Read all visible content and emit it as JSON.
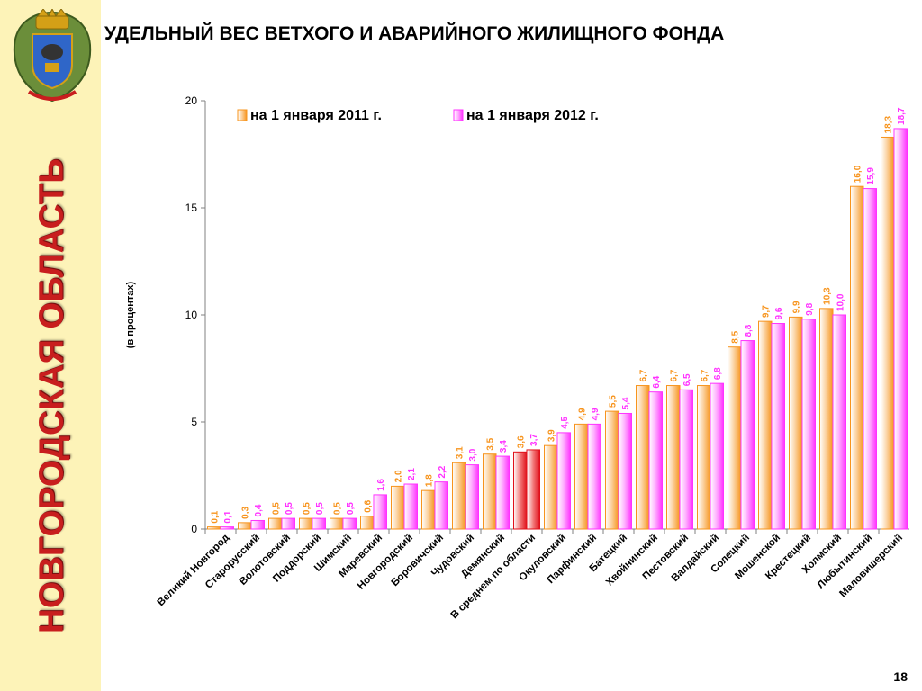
{
  "sidebar": {
    "region_name": "НОВГОРОДСКАЯ ОБЛАСТЬ",
    "emblem_icon": "coat-of-arms-icon"
  },
  "slide": {
    "title": "УДЕЛЬНЫЙ ВЕС ВЕТХОГО И АВАРИЙНОГО ЖИЛИЩНОГО ФОНДА",
    "page_number": "18"
  },
  "colors": {
    "sidebar_bg": "#fdf3b8",
    "region_text": "#c81e1e",
    "series_2011": "#f7941d",
    "series_2012": "#ff33ff",
    "average_bar": "#e0101a"
  },
  "chart_data": {
    "type": "bar",
    "title": "",
    "ylabel": "(в процентах)",
    "xlabel": "",
    "ylim": [
      0,
      20
    ],
    "yticks": [
      "0",
      "5",
      "10",
      "15",
      "20"
    ],
    "legend_position": "top",
    "grid": false,
    "highlight_category": "В среднем по области",
    "categories": [
      "Великий Новгород",
      "Старорусский",
      "Волотовский",
      "Поддорский",
      "Шимский",
      "Маревский",
      "Новгородский",
      "Боровичский",
      "Чудовский",
      "Демянский",
      "В среднем по области",
      "Окуловский",
      "Парфинский",
      "Батецкий",
      "Хвойнинский",
      "Пестовский",
      "Валдайский",
      "Солецкий",
      "Мошенской",
      "Крестецкий",
      "Холмский",
      "Любытинский",
      "Маловишерский"
    ],
    "series": [
      {
        "name": "на 1 января 2011 г.",
        "color": "#f7941d",
        "values": [
          0.1,
          0.3,
          0.5,
          0.5,
          0.5,
          0.6,
          2.0,
          1.8,
          3.1,
          3.5,
          3.6,
          3.9,
          4.9,
          5.5,
          6.7,
          6.7,
          6.7,
          8.5,
          9.7,
          9.9,
          10.3,
          16.0,
          18.3
        ],
        "labels": [
          "0,1",
          "0,3",
          "0,5",
          "0,5",
          "0,5",
          "0,6",
          "2,0",
          "1,8",
          "3,1",
          "3,5",
          "3,6",
          "3,9",
          "4,9",
          "5,5",
          "6,7",
          "6,7",
          "6,7",
          "8,5",
          "9,7",
          "9,9",
          "10,3",
          "16,0",
          "18,3"
        ]
      },
      {
        "name": "на 1 января 2012 г.",
        "color": "#ff33ff",
        "values": [
          0.1,
          0.4,
          0.5,
          0.5,
          0.5,
          1.6,
          2.1,
          2.2,
          3.0,
          3.4,
          3.7,
          4.5,
          4.9,
          5.4,
          6.4,
          6.5,
          6.8,
          8.8,
          9.6,
          9.8,
          10.0,
          15.9,
          18.7
        ],
        "labels": [
          "0,1",
          "0,4",
          "0,5",
          "0,5",
          "0,5",
          "1,6",
          "2,1",
          "2,2",
          "3,0",
          "3,4",
          "3,7",
          "4,5",
          "4,9",
          "5,4",
          "6,4",
          "6,5",
          "6,8",
          "8,8",
          "9,6",
          "9,8",
          "10,0",
          "15,9",
          "18,7"
        ]
      }
    ]
  }
}
